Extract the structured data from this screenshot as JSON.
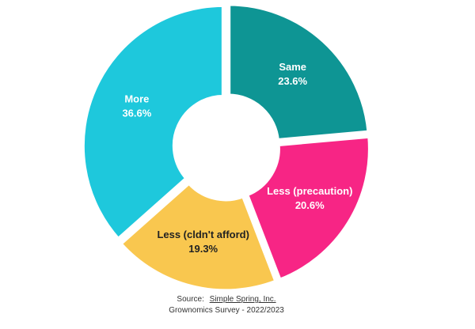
{
  "chart_data": {
    "type": "donut",
    "categories": [
      "Same",
      "Less (precaution)",
      "Less (cldn't afford)",
      "More"
    ],
    "values": [
      23.6,
      20.6,
      19.3,
      36.6
    ],
    "value_labels": [
      "23.6%",
      "20.6%",
      "19.3%",
      "36.6%"
    ],
    "colors": [
      "#0e9594",
      "#f72585",
      "#f9c74f",
      "#1ec8dc"
    ],
    "label_colors": [
      "#ffffff",
      "#ffffff",
      "#222222",
      "#ffffff"
    ],
    "source": "Source:",
    "source_link": "Simple Spring, Inc.",
    "note": "Grownomics Survey - 2022/2023"
  }
}
